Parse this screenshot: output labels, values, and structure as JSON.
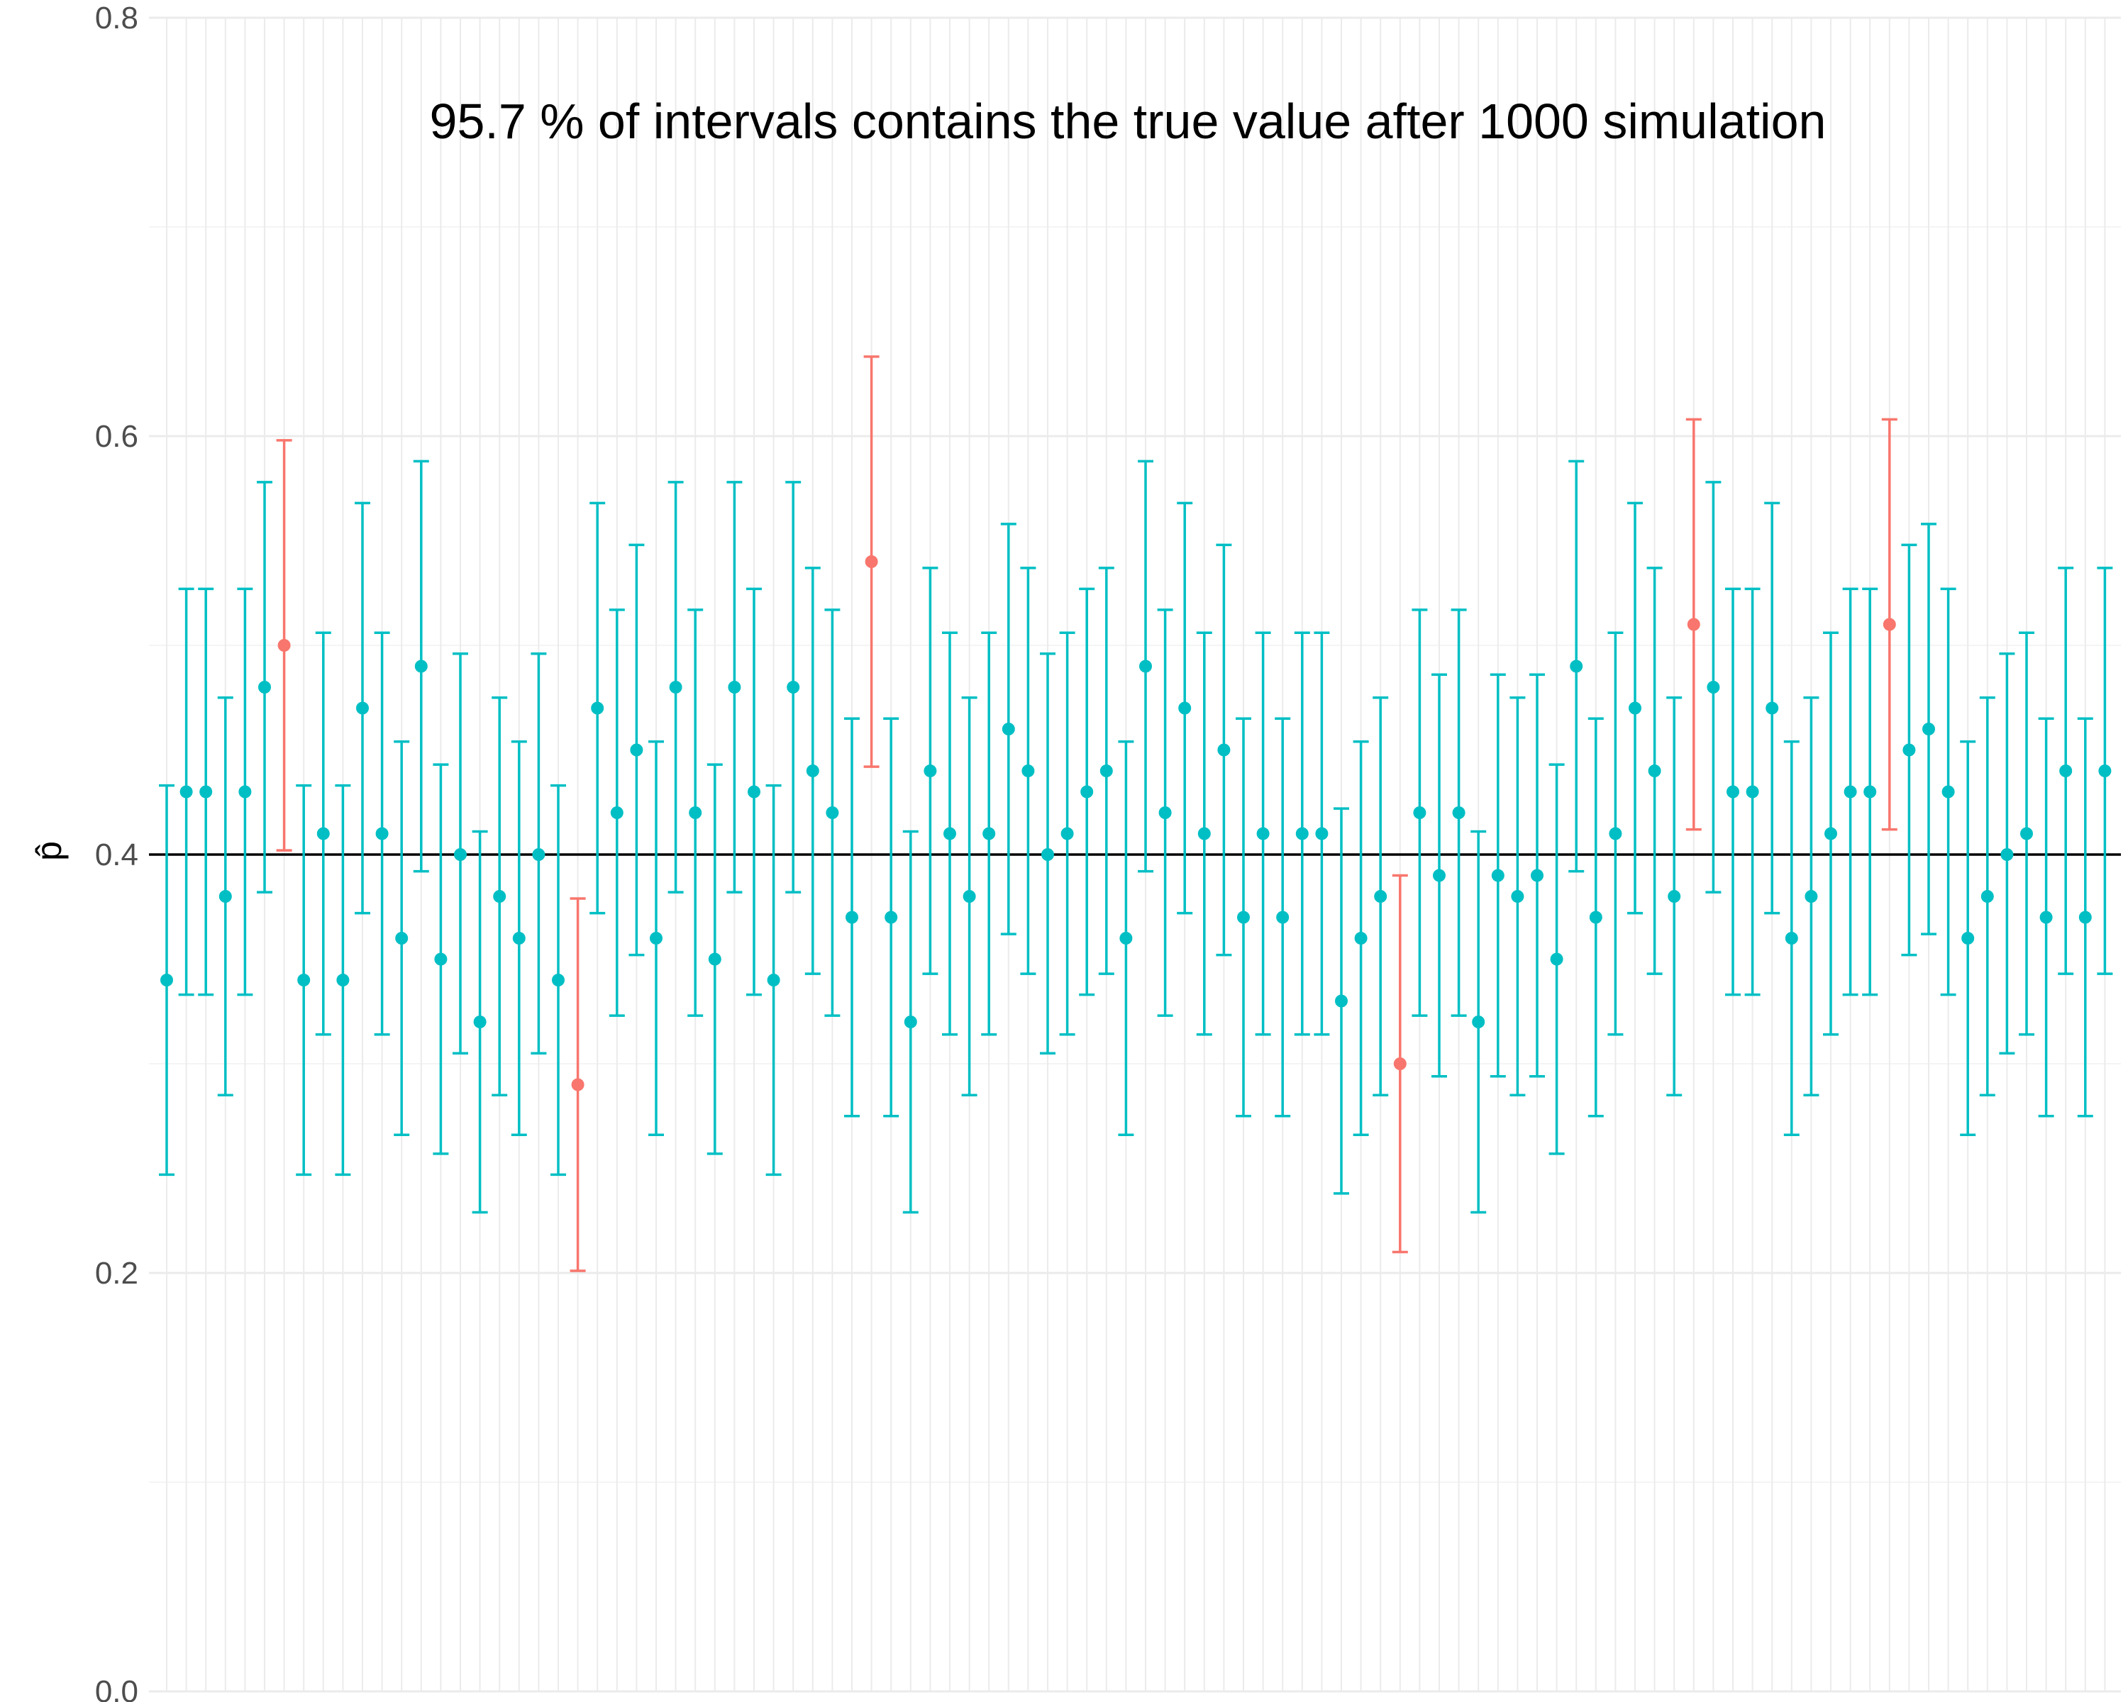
{
  "chart_data": {
    "type": "scatter",
    "title": "95.7 % of intervals contains the true value after 1000 simulation",
    "xlabel": "",
    "ylabel": "p̂",
    "ylim": [
      0,
      0.8
    ],
    "yticks": [
      {
        "value": 0.0,
        "label": "0.0"
      },
      {
        "value": 0.2,
        "label": "0.2"
      },
      {
        "value": 0.4,
        "label": "0.4"
      },
      {
        "value": 0.6,
        "label": "0.6"
      },
      {
        "value": 0.8,
        "label": "0.8"
      }
    ],
    "true_value": 0.4,
    "grid": true,
    "colors": {
      "contains": "#00bfc4",
      "misses": "#f8766d",
      "reference": "#000000",
      "grid_major": "#ebebeb",
      "grid_minor": "#f4f4f4"
    },
    "estimates": [
      0.34,
      0.43,
      0.43,
      0.38,
      0.43,
      0.48,
      0.5,
      0.34,
      0.41,
      0.34,
      0.47,
      0.41,
      0.36,
      0.49,
      0.35,
      0.4,
      0.32,
      0.38,
      0.36,
      0.4,
      0.34,
      0.29,
      0.47,
      0.42,
      0.45,
      0.36,
      0.48,
      0.42,
      0.35,
      0.48,
      0.43,
      0.34,
      0.48,
      0.44,
      0.42,
      0.37,
      0.54,
      0.37,
      0.32,
      0.44,
      0.41,
      0.38,
      0.41,
      0.46,
      0.44,
      0.4,
      0.41,
      0.43,
      0.44,
      0.36,
      0.49,
      0.42,
      0.47,
      0.41,
      0.45,
      0.37,
      0.41,
      0.37,
      0.41,
      0.41,
      0.33,
      0.36,
      0.38,
      0.3,
      0.42,
      0.39,
      0.42,
      0.32,
      0.39,
      0.38,
      0.39,
      0.35,
      0.49,
      0.37,
      0.41,
      0.47,
      0.44,
      0.38,
      0.51,
      0.48,
      0.43,
      0.43,
      0.47,
      0.36,
      0.38,
      0.41,
      0.43,
      0.43,
      0.51,
      0.45,
      0.46,
      0.43,
      0.36,
      0.38,
      0.4,
      0.41,
      0.37,
      0.44,
      0.37,
      0.44
    ],
    "lower": [
      0.247,
      0.333,
      0.333,
      0.285,
      0.333,
      0.382,
      0.402,
      0.247,
      0.314,
      0.247,
      0.372,
      0.314,
      0.266,
      0.392,
      0.257,
      0.305,
      0.229,
      0.285,
      0.266,
      0.305,
      0.247,
      0.201,
      0.372,
      0.323,
      0.352,
      0.266,
      0.382,
      0.323,
      0.257,
      0.382,
      0.333,
      0.247,
      0.382,
      0.343,
      0.323,
      0.275,
      0.442,
      0.275,
      0.229,
      0.343,
      0.314,
      0.285,
      0.314,
      0.362,
      0.343,
      0.305,
      0.314,
      0.333,
      0.343,
      0.266,
      0.392,
      0.323,
      0.372,
      0.314,
      0.352,
      0.275,
      0.314,
      0.275,
      0.314,
      0.314,
      0.238,
      0.266,
      0.285,
      0.21,
      0.323,
      0.294,
      0.323,
      0.229,
      0.294,
      0.285,
      0.294,
      0.257,
      0.392,
      0.275,
      0.314,
      0.372,
      0.343,
      0.285,
      0.412,
      0.382,
      0.333,
      0.333,
      0.372,
      0.266,
      0.285,
      0.314,
      0.333,
      0.333,
      0.412,
      0.352,
      0.362,
      0.333,
      0.266,
      0.285,
      0.305,
      0.314,
      0.275,
      0.343,
      0.275,
      0.343
    ],
    "upper": [
      0.433,
      0.527,
      0.527,
      0.475,
      0.527,
      0.578,
      0.598,
      0.433,
      0.506,
      0.433,
      0.568,
      0.506,
      0.454,
      0.588,
      0.443,
      0.496,
      0.411,
      0.475,
      0.454,
      0.496,
      0.433,
      0.379,
      0.568,
      0.517,
      0.548,
      0.454,
      0.578,
      0.517,
      0.443,
      0.578,
      0.527,
      0.433,
      0.578,
      0.537,
      0.517,
      0.465,
      0.638,
      0.465,
      0.411,
      0.537,
      0.506,
      0.475,
      0.506,
      0.558,
      0.537,
      0.496,
      0.506,
      0.527,
      0.537,
      0.454,
      0.588,
      0.517,
      0.568,
      0.506,
      0.548,
      0.465,
      0.506,
      0.465,
      0.506,
      0.506,
      0.422,
      0.454,
      0.475,
      0.39,
      0.517,
      0.486,
      0.517,
      0.411,
      0.486,
      0.475,
      0.486,
      0.443,
      0.588,
      0.465,
      0.506,
      0.568,
      0.537,
      0.475,
      0.608,
      0.578,
      0.527,
      0.527,
      0.568,
      0.454,
      0.475,
      0.506,
      0.527,
      0.527,
      0.608,
      0.548,
      0.558,
      0.527,
      0.454,
      0.475,
      0.496,
      0.506,
      0.465,
      0.537,
      0.465,
      0.537
    ]
  }
}
